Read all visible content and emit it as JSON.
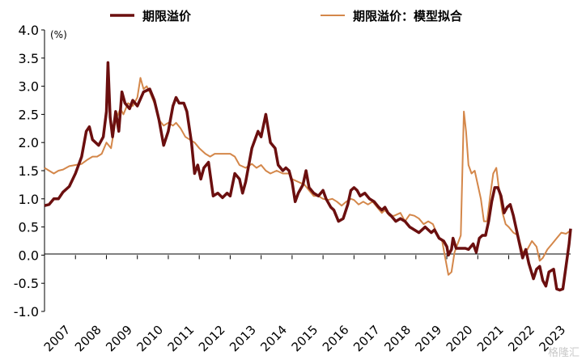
{
  "chart_data": {
    "type": "line",
    "title": "",
    "ylabel": "",
    "unit_label": "(%)",
    "xlabel": "",
    "ylim": [
      -1.0,
      4.0
    ],
    "yticks": [
      "4.0",
      "3.5",
      "3.0",
      "2.5",
      "2.0",
      "1.5",
      "1.0",
      "0.5",
      "0.0",
      "-0.5",
      "-1.0"
    ],
    "xticks": [
      "2007",
      "2008",
      "2009",
      "2010",
      "2011",
      "2012",
      "2013",
      "2014",
      "2015",
      "2016",
      "2017",
      "2018",
      "2019",
      "2020",
      "2021",
      "2022",
      "2023"
    ],
    "legend_position": "top",
    "series": [
      {
        "name": "期限溢价",
        "color": "#6b0f0f",
        "points": [
          [
            2007.0,
            0.88
          ],
          [
            2007.15,
            0.9
          ],
          [
            2007.3,
            1.0
          ],
          [
            2007.45,
            1.0
          ],
          [
            2007.6,
            1.12
          ],
          [
            2007.8,
            1.22
          ],
          [
            2008.0,
            1.45
          ],
          [
            2008.2,
            1.75
          ],
          [
            2008.35,
            2.2
          ],
          [
            2008.45,
            2.28
          ],
          [
            2008.55,
            2.05
          ],
          [
            2008.75,
            1.95
          ],
          [
            2008.9,
            2.1
          ],
          [
            2009.0,
            2.55
          ],
          [
            2009.05,
            3.42
          ],
          [
            2009.12,
            2.45
          ],
          [
            2009.2,
            2.1
          ],
          [
            2009.3,
            2.55
          ],
          [
            2009.4,
            2.2
          ],
          [
            2009.5,
            2.9
          ],
          [
            2009.6,
            2.7
          ],
          [
            2009.75,
            2.6
          ],
          [
            2009.85,
            2.75
          ],
          [
            2010.0,
            2.65
          ],
          [
            2010.2,
            2.9
          ],
          [
            2010.4,
            2.95
          ],
          [
            2010.55,
            2.75
          ],
          [
            2010.7,
            2.4
          ],
          [
            2010.85,
            1.95
          ],
          [
            2011.0,
            2.2
          ],
          [
            2011.15,
            2.65
          ],
          [
            2011.25,
            2.8
          ],
          [
            2011.35,
            2.7
          ],
          [
            2011.5,
            2.7
          ],
          [
            2011.6,
            2.55
          ],
          [
            2011.75,
            2.0
          ],
          [
            2011.85,
            1.45
          ],
          [
            2011.95,
            1.6
          ],
          [
            2012.05,
            1.35
          ],
          [
            2012.15,
            1.55
          ],
          [
            2012.3,
            1.65
          ],
          [
            2012.45,
            1.05
          ],
          [
            2012.6,
            1.1
          ],
          [
            2012.75,
            1.02
          ],
          [
            2012.9,
            1.1
          ],
          [
            2013.0,
            1.05
          ],
          [
            2013.15,
            1.45
          ],
          [
            2013.3,
            1.35
          ],
          [
            2013.4,
            1.1
          ],
          [
            2013.5,
            1.3
          ],
          [
            2013.7,
            1.9
          ],
          [
            2013.9,
            2.2
          ],
          [
            2014.0,
            2.1
          ],
          [
            2014.15,
            2.5
          ],
          [
            2014.3,
            2.0
          ],
          [
            2014.45,
            1.9
          ],
          [
            2014.55,
            1.6
          ],
          [
            2014.7,
            1.5
          ],
          [
            2014.8,
            1.55
          ],
          [
            2014.9,
            1.5
          ],
          [
            2015.0,
            1.3
          ],
          [
            2015.1,
            0.95
          ],
          [
            2015.2,
            1.1
          ],
          [
            2015.35,
            1.25
          ],
          [
            2015.45,
            1.5
          ],
          [
            2015.55,
            1.2
          ],
          [
            2015.7,
            1.1
          ],
          [
            2015.85,
            1.05
          ],
          [
            2016.0,
            1.15
          ],
          [
            2016.1,
            1.0
          ],
          [
            2016.25,
            0.85
          ],
          [
            2016.35,
            0.8
          ],
          [
            2016.5,
            0.6
          ],
          [
            2016.65,
            0.65
          ],
          [
            2016.8,
            0.9
          ],
          [
            2016.9,
            1.15
          ],
          [
            2017.0,
            1.2
          ],
          [
            2017.1,
            1.15
          ],
          [
            2017.2,
            1.05
          ],
          [
            2017.35,
            1.1
          ],
          [
            2017.5,
            1.0
          ],
          [
            2017.65,
            0.95
          ],
          [
            2017.8,
            0.85
          ],
          [
            2017.9,
            0.8
          ],
          [
            2018.0,
            0.85
          ],
          [
            2018.1,
            0.75
          ],
          [
            2018.2,
            0.7
          ],
          [
            2018.35,
            0.6
          ],
          [
            2018.5,
            0.65
          ],
          [
            2018.65,
            0.6
          ],
          [
            2018.8,
            0.5
          ],
          [
            2018.95,
            0.45
          ],
          [
            2019.1,
            0.4
          ],
          [
            2019.3,
            0.5
          ],
          [
            2019.5,
            0.4
          ],
          [
            2019.6,
            0.45
          ],
          [
            2019.75,
            0.3
          ],
          [
            2019.9,
            0.25
          ],
          [
            2020.0,
            0.15
          ],
          [
            2020.05,
            0.0
          ],
          [
            2020.15,
            0.1
          ],
          [
            2020.2,
            0.3
          ],
          [
            2020.3,
            0.12
          ],
          [
            2020.45,
            0.12
          ],
          [
            2020.6,
            0.12
          ],
          [
            2020.7,
            0.1
          ],
          [
            2020.85,
            0.2
          ],
          [
            2020.95,
            0.05
          ],
          [
            2021.05,
            0.3
          ],
          [
            2021.15,
            0.35
          ],
          [
            2021.25,
            0.35
          ],
          [
            2021.35,
            0.6
          ],
          [
            2021.45,
            0.95
          ],
          [
            2021.55,
            1.2
          ],
          [
            2021.65,
            1.2
          ],
          [
            2021.75,
            1.05
          ],
          [
            2021.85,
            0.75
          ],
          [
            2021.95,
            0.85
          ],
          [
            2022.05,
            0.9
          ],
          [
            2022.15,
            0.7
          ],
          [
            2022.25,
            0.45
          ],
          [
            2022.35,
            0.2
          ],
          [
            2022.45,
            -0.05
          ],
          [
            2022.55,
            0.1
          ],
          [
            2022.65,
            -0.15
          ],
          [
            2022.8,
            -0.42
          ],
          [
            2022.9,
            -0.25
          ],
          [
            2023.0,
            -0.2
          ],
          [
            2023.1,
            -0.45
          ],
          [
            2023.2,
            -0.55
          ],
          [
            2023.3,
            -0.3
          ],
          [
            2023.45,
            -0.25
          ],
          [
            2023.55,
            -0.6
          ],
          [
            2023.65,
            -0.62
          ],
          [
            2023.75,
            -0.6
          ],
          [
            2023.85,
            -0.2
          ],
          [
            2023.95,
            0.2
          ],
          [
            2024.0,
            0.47
          ]
        ]
      },
      {
        "name": "期限溢价：模型拟合",
        "color": "#d4874a",
        "points": [
          [
            2007.0,
            1.55
          ],
          [
            2007.15,
            1.5
          ],
          [
            2007.3,
            1.45
          ],
          [
            2007.45,
            1.5
          ],
          [
            2007.6,
            1.52
          ],
          [
            2007.8,
            1.58
          ],
          [
            2008.0,
            1.6
          ],
          [
            2008.2,
            1.62
          ],
          [
            2008.4,
            1.7
          ],
          [
            2008.55,
            1.75
          ],
          [
            2008.7,
            1.75
          ],
          [
            2008.85,
            1.8
          ],
          [
            2009.0,
            2.0
          ],
          [
            2009.15,
            1.9
          ],
          [
            2009.3,
            2.4
          ],
          [
            2009.45,
            2.6
          ],
          [
            2009.55,
            2.5
          ],
          [
            2009.7,
            2.7
          ],
          [
            2009.85,
            2.65
          ],
          [
            2010.0,
            2.8
          ],
          [
            2010.1,
            3.15
          ],
          [
            2010.2,
            2.95
          ],
          [
            2010.3,
            3.0
          ],
          [
            2010.4,
            2.9
          ],
          [
            2010.55,
            2.7
          ],
          [
            2010.7,
            2.4
          ],
          [
            2010.85,
            2.3
          ],
          [
            2011.0,
            2.35
          ],
          [
            2011.15,
            2.3
          ],
          [
            2011.25,
            2.35
          ],
          [
            2011.4,
            2.25
          ],
          [
            2011.55,
            2.1
          ],
          [
            2011.7,
            2.05
          ],
          [
            2011.85,
            2.0
          ],
          [
            2012.0,
            1.9
          ],
          [
            2012.2,
            1.8
          ],
          [
            2012.35,
            1.75
          ],
          [
            2012.5,
            1.8
          ],
          [
            2012.7,
            1.8
          ],
          [
            2012.9,
            1.8
          ],
          [
            2013.0,
            1.8
          ],
          [
            2013.15,
            1.75
          ],
          [
            2013.3,
            1.6
          ],
          [
            2013.5,
            1.55
          ],
          [
            2013.7,
            1.62
          ],
          [
            2013.85,
            1.55
          ],
          [
            2014.0,
            1.6
          ],
          [
            2014.15,
            1.5
          ],
          [
            2014.3,
            1.45
          ],
          [
            2014.5,
            1.5
          ],
          [
            2014.7,
            1.45
          ],
          [
            2014.9,
            1.45
          ],
          [
            2015.0,
            1.35
          ],
          [
            2015.2,
            1.3
          ],
          [
            2015.4,
            1.25
          ],
          [
            2015.55,
            1.15
          ],
          [
            2015.7,
            1.05
          ],
          [
            2015.85,
            1.05
          ],
          [
            2016.0,
            1.0
          ],
          [
            2016.15,
            0.98
          ],
          [
            2016.3,
            1.0
          ],
          [
            2016.45,
            0.95
          ],
          [
            2016.6,
            0.88
          ],
          [
            2016.75,
            0.95
          ],
          [
            2016.9,
            1.0
          ],
          [
            2017.0,
            0.98
          ],
          [
            2017.15,
            0.9
          ],
          [
            2017.3,
            0.95
          ],
          [
            2017.45,
            0.9
          ],
          [
            2017.6,
            0.95
          ],
          [
            2017.75,
            0.85
          ],
          [
            2017.9,
            0.75
          ],
          [
            2018.0,
            0.8
          ],
          [
            2018.15,
            0.7
          ],
          [
            2018.3,
            0.7
          ],
          [
            2018.5,
            0.75
          ],
          [
            2018.65,
            0.6
          ],
          [
            2018.8,
            0.72
          ],
          [
            2018.95,
            0.7
          ],
          [
            2019.1,
            0.65
          ],
          [
            2019.25,
            0.55
          ],
          [
            2019.4,
            0.6
          ],
          [
            2019.55,
            0.55
          ],
          [
            2019.7,
            0.35
          ],
          [
            2019.85,
            0.25
          ],
          [
            2019.95,
            -0.05
          ],
          [
            2020.05,
            -0.35
          ],
          [
            2020.15,
            -0.3
          ],
          [
            2020.25,
            0.05
          ],
          [
            2020.35,
            0.2
          ],
          [
            2020.45,
            0.35
          ],
          [
            2020.55,
            2.55
          ],
          [
            2020.62,
            2.2
          ],
          [
            2020.7,
            1.6
          ],
          [
            2020.8,
            1.45
          ],
          [
            2020.9,
            1.5
          ],
          [
            2021.0,
            1.25
          ],
          [
            2021.1,
            1.0
          ],
          [
            2021.2,
            0.6
          ],
          [
            2021.3,
            0.6
          ],
          [
            2021.4,
            1.05
          ],
          [
            2021.5,
            1.45
          ],
          [
            2021.6,
            1.55
          ],
          [
            2021.7,
            1.1
          ],
          [
            2021.8,
            0.75
          ],
          [
            2021.9,
            0.55
          ],
          [
            2022.0,
            0.5
          ],
          [
            2022.15,
            0.4
          ],
          [
            2022.3,
            0.35
          ],
          [
            2022.45,
            0.05
          ],
          [
            2022.6,
            0.1
          ],
          [
            2022.75,
            0.25
          ],
          [
            2022.9,
            0.15
          ],
          [
            2023.0,
            -0.1
          ],
          [
            2023.1,
            -0.05
          ],
          [
            2023.25,
            0.1
          ],
          [
            2023.4,
            0.2
          ],
          [
            2023.55,
            0.3
          ],
          [
            2023.7,
            0.4
          ],
          [
            2023.85,
            0.38
          ],
          [
            2023.95,
            0.42
          ],
          [
            2024.0,
            0.42
          ]
        ]
      }
    ]
  },
  "watermark": "格隆汇"
}
